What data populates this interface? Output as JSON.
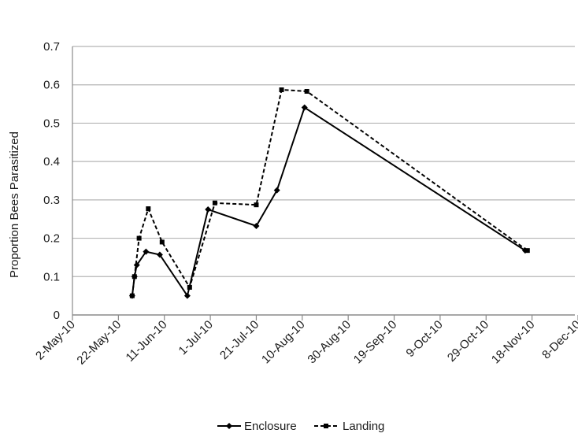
{
  "chart_data": {
    "type": "line",
    "title": "",
    "xlabel": "",
    "ylabel": "Proportion Bees Parasitized",
    "x_axis": {
      "type": "date",
      "ticks": [
        "2010-05-02",
        "2010-05-22",
        "2010-06-11",
        "2010-07-01",
        "2010-07-21",
        "2010-08-10",
        "2010-08-30",
        "2010-09-19",
        "2010-10-09",
        "2010-10-29",
        "2010-11-18",
        "2010-12-08"
      ],
      "tick_labels": [
        "2-May-10",
        "22-May-10",
        "11-Jun-10",
        "1-Jul-10",
        "21-Jul-10",
        "10-Aug-10",
        "30-Aug-10",
        "19-Sep-10",
        "9-Oct-10",
        "29-Oct-10",
        "18-Nov-10",
        "8-Dec-10"
      ]
    },
    "ylim": [
      0,
      0.7
    ],
    "y_ticks": [
      0,
      0.1,
      0.2,
      0.3,
      0.4,
      0.5,
      0.6,
      0.7
    ],
    "y_tick_labels": [
      "0",
      "0.1",
      "0.2",
      "0.3",
      "0.4",
      "0.5",
      "0.6",
      "0.7"
    ],
    "grid": "horizontal",
    "legend_position": "bottom-center",
    "series": [
      {
        "name": "Enclosure",
        "style": "solid",
        "marker": "diamond",
        "color": "#000000",
        "points": [
          {
            "x": "2010-05-28",
            "y": 0.05
          },
          {
            "x": "2010-05-29",
            "y": 0.1
          },
          {
            "x": "2010-05-30",
            "y": 0.13
          },
          {
            "x": "2010-06-03",
            "y": 0.165
          },
          {
            "x": "2010-06-09",
            "y": 0.157
          },
          {
            "x": "2010-06-21",
            "y": 0.05
          },
          {
            "x": "2010-06-30",
            "y": 0.275
          },
          {
            "x": "2010-07-21",
            "y": 0.232
          },
          {
            "x": "2010-07-30",
            "y": 0.325
          },
          {
            "x": "2010-08-11",
            "y": 0.541
          },
          {
            "x": "2010-11-15",
            "y": 0.168
          }
        ]
      },
      {
        "name": "Landing",
        "style": "dashed",
        "marker": "square",
        "color": "#000000",
        "points": [
          {
            "x": "2010-05-28",
            "y": 0.05
          },
          {
            "x": "2010-05-29",
            "y": 0.1
          },
          {
            "x": "2010-05-31",
            "y": 0.2
          },
          {
            "x": "2010-06-04",
            "y": 0.277
          },
          {
            "x": "2010-06-10",
            "y": 0.19
          },
          {
            "x": "2010-06-22",
            "y": 0.072
          },
          {
            "x": "2010-07-03",
            "y": 0.292
          },
          {
            "x": "2010-07-21",
            "y": 0.287
          },
          {
            "x": "2010-08-01",
            "y": 0.587
          },
          {
            "x": "2010-08-12",
            "y": 0.583
          },
          {
            "x": "2010-11-16",
            "y": 0.168
          }
        ]
      }
    ]
  }
}
